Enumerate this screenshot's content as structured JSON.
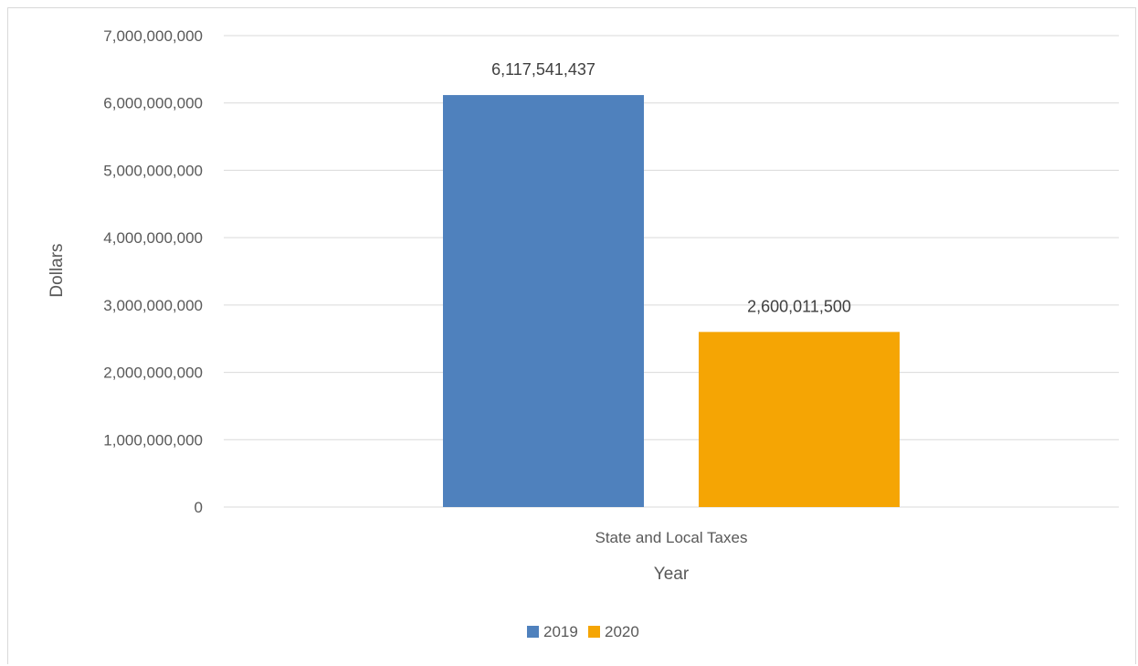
{
  "chart_data": {
    "type": "bar",
    "title": "",
    "xlabel": "Year",
    "ylabel": "Dollars",
    "categories": [
      "State and Local Taxes"
    ],
    "series": [
      {
        "name": "2019",
        "values": [
          6117541437
        ],
        "label": "6,117,541,437",
        "color": "#4f81bd"
      },
      {
        "name": "2020",
        "values": [
          2600011500
        ],
        "label": "2,600,011,500",
        "color": "#f5a504"
      }
    ],
    "ylim": [
      0,
      7000000000
    ],
    "yticks": [
      0,
      1000000000,
      2000000000,
      3000000000,
      4000000000,
      5000000000,
      6000000000,
      7000000000
    ],
    "ytick_labels": [
      "0",
      "1,000,000,000",
      "2,000,000,000",
      "3,000,000,000",
      "4,000,000,000",
      "5,000,000,000",
      "6,000,000,000",
      "7,000,000,000"
    ],
    "grid": true,
    "legend_position": "bottom"
  }
}
